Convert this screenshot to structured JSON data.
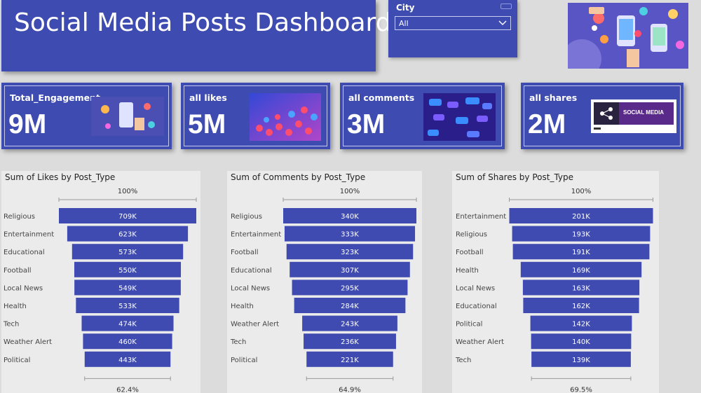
{
  "title": "Social Media Posts Dashboard",
  "slicer": {
    "label": "City",
    "value": "All"
  },
  "kpis": [
    {
      "label": "Total_Engagement",
      "value": "9M"
    },
    {
      "label": "all likes",
      "value": "5M"
    },
    {
      "label": "all comments",
      "value": "3M"
    },
    {
      "label": "all shares",
      "value": "2M"
    }
  ],
  "image_text": {
    "social_banner": "SOCIAL MEDIA"
  },
  "colors": {
    "accent": "#3e4bb1",
    "panel": "#ebebeb",
    "background": "#dcdcdc",
    "bar": "#3f4bb1"
  },
  "chart_data": [
    {
      "type": "bar",
      "subtype": "funnel",
      "title": "Sum of Likes by Post_Type",
      "top_label": "100%",
      "bottom_label": "62.4%",
      "categories": [
        "Religious",
        "Entertainment",
        "Educational",
        "Football",
        "Local News",
        "Health",
        "Tech",
        "Weather Alert",
        "Political"
      ],
      "values": [
        709,
        623,
        573,
        550,
        549,
        533,
        474,
        460,
        443
      ],
      "labels": [
        "709K",
        "623K",
        "573K",
        "550K",
        "549K",
        "533K",
        "474K",
        "460K",
        "443K"
      ]
    },
    {
      "type": "bar",
      "subtype": "funnel",
      "title": "Sum of Comments by Post_Type",
      "top_label": "100%",
      "bottom_label": "64.9%",
      "categories": [
        "Religious",
        "Entertainment",
        "Football",
        "Educational",
        "Local News",
        "Health",
        "Weather Alert",
        "Tech",
        "Political"
      ],
      "values": [
        340,
        333,
        323,
        307,
        295,
        284,
        243,
        236,
        221
      ],
      "labels": [
        "340K",
        "333K",
        "323K",
        "307K",
        "295K",
        "284K",
        "243K",
        "236K",
        "221K"
      ]
    },
    {
      "type": "bar",
      "subtype": "funnel",
      "title": "Sum of Shares by Post_Type",
      "top_label": "100%",
      "bottom_label": "69.5%",
      "categories": [
        "Entertainment",
        "Religious",
        "Football",
        "Health",
        "Local News",
        "Educational",
        "Political",
        "Weather Alert",
        "Tech"
      ],
      "values": [
        201,
        193,
        191,
        169,
        163,
        162,
        142,
        140,
        139
      ],
      "labels": [
        "201K",
        "193K",
        "191K",
        "169K",
        "163K",
        "162K",
        "142K",
        "140K",
        "139K"
      ]
    }
  ]
}
